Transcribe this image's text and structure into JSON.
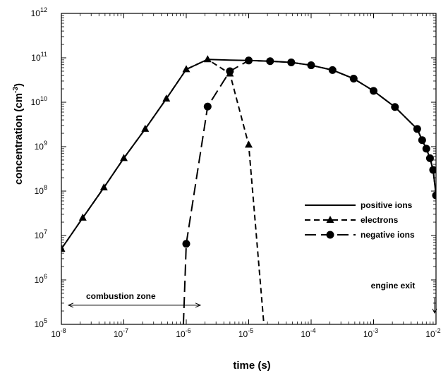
{
  "chart_data": {
    "type": "line",
    "xlabel": "time (s)",
    "ylabel": "concentration (cm",
    "ylabel_sup": "-3",
    "ylabel_end": ")",
    "xscale": "log",
    "yscale": "log",
    "xlim": [
      1e-08,
      0.01
    ],
    "ylim": [
      100000.0,
      1000000000000.0
    ],
    "grid": false,
    "legend_position": "center-right",
    "x_ticks": [
      {
        "base": "10",
        "exp": "-8",
        "value": 1e-08
      },
      {
        "base": "10",
        "exp": "-7",
        "value": 1e-07
      },
      {
        "base": "10",
        "exp": "-6",
        "value": 1e-06
      },
      {
        "base": "10",
        "exp": "-5",
        "value": 1e-05
      },
      {
        "base": "10",
        "exp": "-4",
        "value": 0.0001
      },
      {
        "base": "10",
        "exp": "-3",
        "value": 0.001
      },
      {
        "base": "10",
        "exp": "-2",
        "value": 0.01
      }
    ],
    "y_ticks": [
      {
        "base": "10",
        "exp": "5",
        "value": 100000.0
      },
      {
        "base": "10",
        "exp": "6",
        "value": 1000000.0
      },
      {
        "base": "10",
        "exp": "7",
        "value": 10000000.0
      },
      {
        "base": "10",
        "exp": "8",
        "value": 100000000.0
      },
      {
        "base": "10",
        "exp": "9",
        "value": 1000000000.0
      },
      {
        "base": "10",
        "exp": "10",
        "value": 10000000000.0
      },
      {
        "base": "10",
        "exp": "11",
        "value": 100000000000.0
      },
      {
        "base": "10",
        "exp": "12",
        "value": 1000000000000.0
      }
    ],
    "series": [
      {
        "name": "positive ions",
        "line_style": "solid",
        "marker": "none",
        "x": [
          1e-08,
          2.2e-08,
          4.8e-08,
          1e-07,
          2.2e-07,
          4.8e-07,
          1e-06,
          2.2e-06,
          5e-06,
          1e-05,
          2.2e-05,
          4.8e-05,
          0.0001,
          0.00022,
          0.00048,
          0.001,
          0.0022,
          0.005,
          0.006,
          0.007,
          0.008,
          0.009,
          0.01
        ],
        "y": [
          5000000.0,
          25000000.0,
          120000000.0,
          550000000.0,
          2500000000.0,
          12000000000.0,
          55000000000.0,
          92000000000.0,
          89000000000.0,
          87000000000.0,
          84000000000.0,
          79000000000.0,
          68000000000.0,
          53000000000.0,
          34000000000.0,
          18000000000.0,
          7800000000.0,
          2500000000.0,
          1400000000.0,
          900000000.0,
          550000000.0,
          300000000.0,
          80000000.0
        ]
      },
      {
        "name": "electrons",
        "line_style": "short-dash",
        "marker": "triangle",
        "x": [
          1e-08,
          2.2e-08,
          4.8e-08,
          1e-07,
          2.2e-07,
          4.8e-07,
          1e-06,
          2.2e-06,
          5e-06,
          1e-05,
          1.75e-05
        ],
        "y": [
          5000000.0,
          25000000.0,
          120000000.0,
          550000000.0,
          2500000000.0,
          12000000000.0,
          55000000000.0,
          92000000000.0,
          44000000000.0,
          1100000000.0,
          100000.0
        ],
        "marked_points": 10
      },
      {
        "name": "negative ions",
        "line_style": "long-dash",
        "marker": "circle",
        "x": [
          9e-07,
          1e-06,
          2.2e-06,
          5e-06,
          1e-05,
          2.2e-05,
          4.8e-05,
          0.0001,
          0.00022,
          0.00048,
          0.001,
          0.0022,
          0.005,
          0.006,
          0.007,
          0.008,
          0.009,
          0.01
        ],
        "y": [
          100000.0,
          6500000.0,
          8000000000.0,
          50000000000.0,
          87000000000.0,
          84000000000.0,
          79000000000.0,
          68000000000.0,
          53000000000.0,
          34000000000.0,
          18000000000.0,
          7800000000.0,
          2500000000.0,
          1400000000.0,
          900000000.0,
          550000000.0,
          300000000.0,
          80000000.0
        ],
        "marked_from": 1
      }
    ],
    "annotations": [
      {
        "text": "combustion zone",
        "kind": "double-arrow",
        "x_from": 1e-08,
        "x_to": 1e-06,
        "y": 270000.0
      },
      {
        "text": "engine exit",
        "kind": "down-arrow",
        "x": 0.0095,
        "y_from": 400000.0,
        "y_to": 180000.0
      }
    ]
  }
}
